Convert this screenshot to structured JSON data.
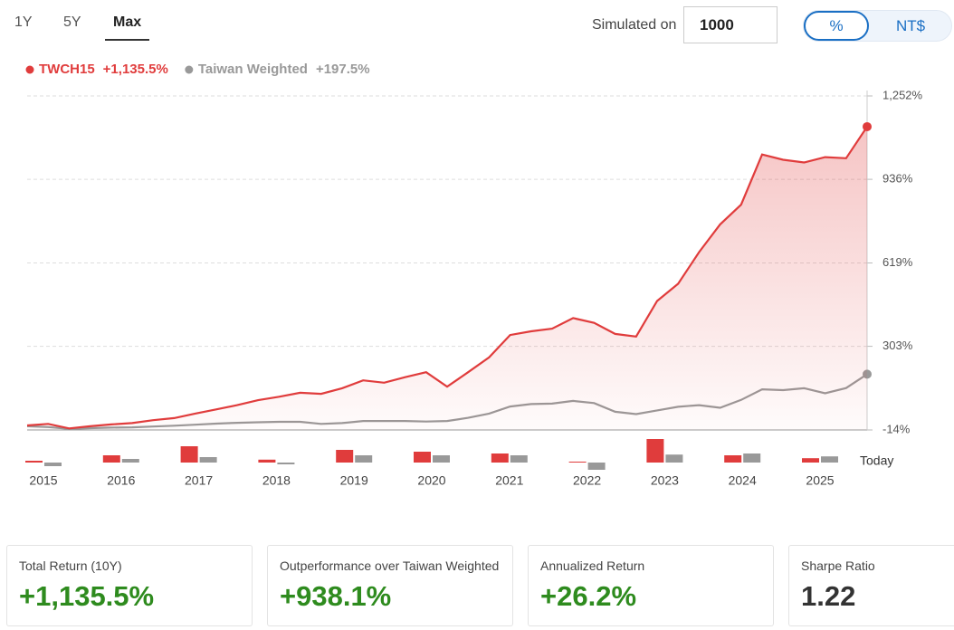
{
  "tabs": {
    "items": [
      "1Y",
      "5Y",
      "Max"
    ],
    "active": 2
  },
  "simulator": {
    "label": "Simulated on",
    "amount": "1000"
  },
  "unit_toggle": {
    "items": [
      "%",
      "NT$"
    ],
    "active": 0
  },
  "chart_data": [
    {
      "type": "line",
      "ylim": [
        -14,
        1252
      ],
      "yticks": [
        {
          "value": -14,
          "label": "-14%"
        },
        {
          "value": 303,
          "label": "303%"
        },
        {
          "value": 619,
          "label": "619%"
        },
        {
          "value": 936,
          "label": "936%"
        },
        {
          "value": 1252,
          "label": "1,252%"
        }
      ],
      "grid": true,
      "series": [
        {
          "name": "TWCH15",
          "return_label": "+1,135.5%",
          "color": "#e03c3c",
          "fill": true,
          "values": [
            3,
            9,
            -8,
            0,
            7,
            12,
            23,
            31,
            48,
            64,
            80,
            99,
            112,
            127,
            123,
            144,
            174,
            165,
            186,
            205,
            150,
            205,
            261,
            346,
            360,
            370,
            410,
            392,
            350,
            340,
            475,
            540,
            660,
            765,
            840,
            1030,
            1010,
            1000,
            1020,
            1016,
            1135.5
          ]
        },
        {
          "name": "Taiwan Weighted",
          "return_label": "+197.5%",
          "color": "#999999",
          "fill": false,
          "values": [
            0,
            -3,
            -10,
            -7,
            -5,
            -4,
            -1,
            2,
            6,
            10,
            13,
            15,
            17,
            17,
            9,
            12,
            20,
            20,
            20,
            18,
            20,
            32,
            48,
            75,
            84,
            86,
            96,
            88,
            55,
            46,
            60,
            74,
            80,
            70,
            100,
            140,
            137,
            144,
            125,
            145,
            197.5
          ]
        }
      ]
    },
    {
      "type": "bar",
      "categories": [
        "2015",
        "2016",
        "2017",
        "2018",
        "2019",
        "2020",
        "2021",
        "2022",
        "2023",
        "2024",
        "2025"
      ],
      "end_label": "Today",
      "series": [
        {
          "name": "TWCH15",
          "color": "#e03c3c",
          "values": [
            5,
            20,
            45,
            8,
            35,
            30,
            25,
            2,
            65,
            20,
            12
          ]
        },
        {
          "name": "Taiwan Weighted",
          "color": "#999999",
          "values": [
            -10,
            10,
            15,
            -5,
            20,
            20,
            20,
            -20,
            22,
            25,
            17
          ]
        }
      ]
    }
  ],
  "stats": [
    {
      "label": "Total Return (10Y)",
      "value": "+1,135.5%",
      "positive": true
    },
    {
      "label": "Outperformance over Taiwan Weighted",
      "value": "+938.1%",
      "positive": true
    },
    {
      "label": "Annualized Return",
      "value": "+26.2%",
      "positive": true
    },
    {
      "label": "Sharpe Ratio",
      "value": "1.22",
      "positive": false
    }
  ]
}
